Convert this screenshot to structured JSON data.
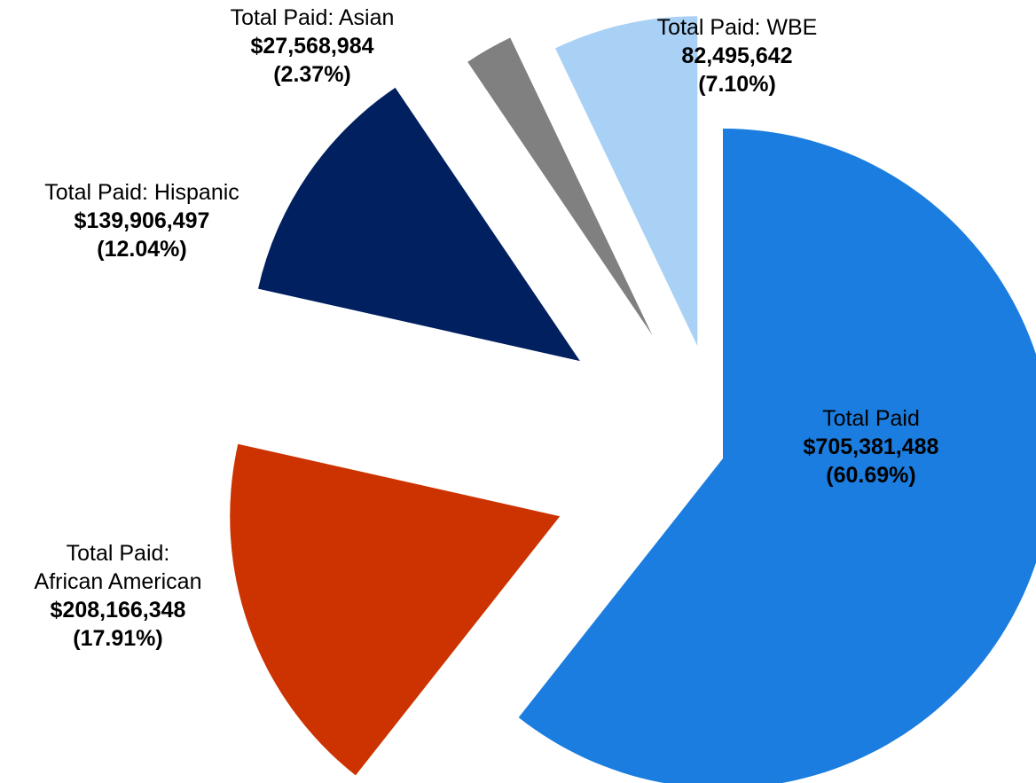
{
  "chart_data": {
    "type": "pie",
    "title": "",
    "slices": [
      {
        "name_lines": [
          "Total Paid"
        ],
        "amount": "$705,381,488",
        "percent_label": "(60.69%)",
        "value": 705381488,
        "percent": 60.69,
        "color": "#1a7ddf",
        "exploded": false
      },
      {
        "name_lines": [
          "Total Paid:",
          "African American"
        ],
        "amount": "$208,166,348",
        "percent_label": "(17.91%)",
        "value": 208166348,
        "percent": 17.91,
        "color": "#cc3300",
        "exploded": true
      },
      {
        "name_lines": [
          "Total Paid: Hispanic"
        ],
        "amount": "$139,906,497",
        "percent_label": "(12.04%)",
        "value": 139906497,
        "percent": 12.04,
        "color": "#002060",
        "exploded": true
      },
      {
        "name_lines": [
          "Total Paid: Asian"
        ],
        "amount": "$27,568,984",
        "percent_label": "(2.37%)",
        "value": 27568984,
        "percent": 2.37,
        "color": "#808080",
        "exploded": true
      },
      {
        "name_lines": [
          "Total Paid: WBE"
        ],
        "amount": "82,495,642",
        "percent_label": "(7.10%)",
        "value": 82495642,
        "percent": 7.1,
        "color": "#a9d0f5",
        "exploded": true
      }
    ]
  }
}
